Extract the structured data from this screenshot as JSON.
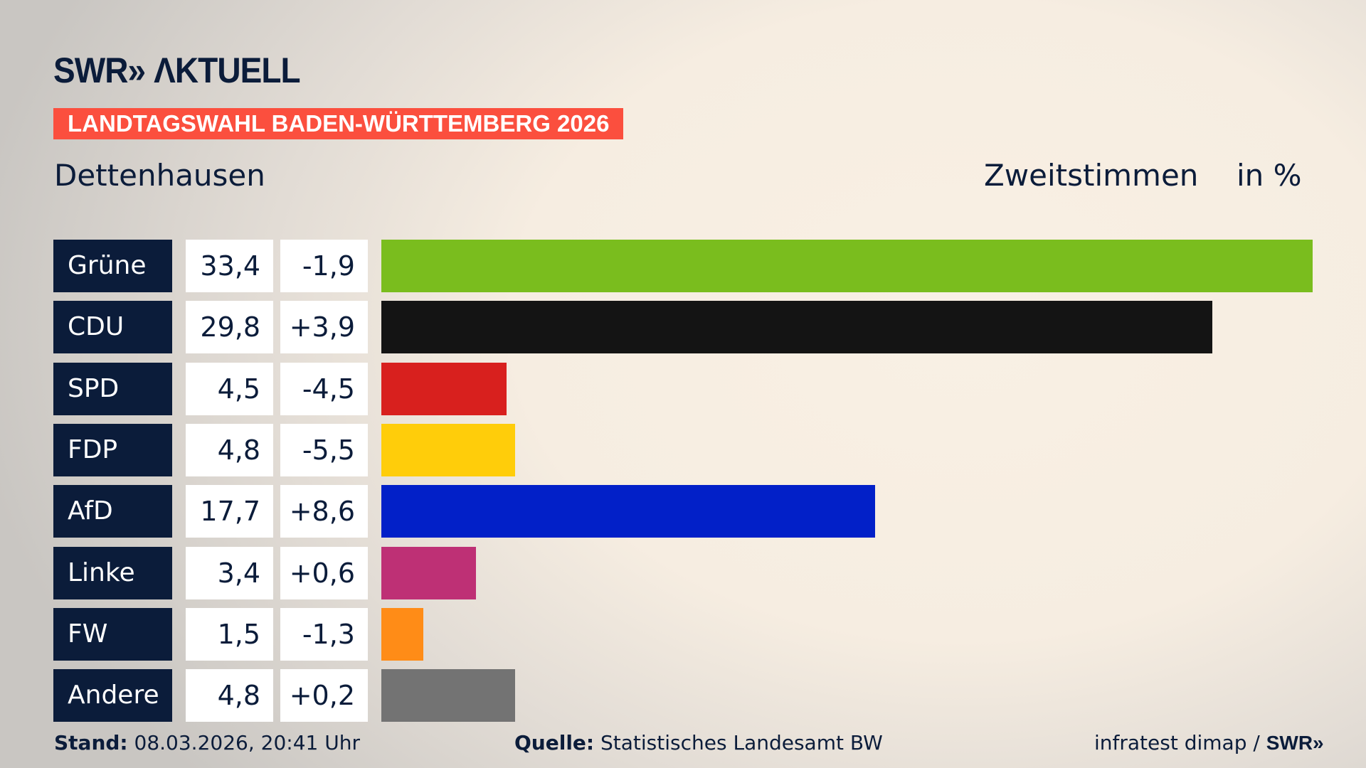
{
  "logo": "SWR» ΛKTUELL",
  "banner": "LANDTAGSWAHL BADEN-WÜRTTEMBERG 2026",
  "place": "Dettenhausen",
  "kind": "Zweitstimmen",
  "unit": "in %",
  "chart_data": {
    "type": "bar",
    "orientation": "horizontal",
    "categories": [
      "Grüne",
      "CDU",
      "SPD",
      "FDP",
      "AfD",
      "Linke",
      "FW",
      "Andere"
    ],
    "values": [
      33.4,
      29.8,
      4.5,
      4.8,
      17.7,
      3.4,
      1.5,
      4.8
    ],
    "value_labels": [
      "33,4",
      "29,8",
      "4,5",
      "4,8",
      "17,7",
      "3,4",
      "1,5",
      "4,8"
    ],
    "diff_labels": [
      "-1,9",
      "+3,9",
      "-4,5",
      "-5,5",
      "+8,6",
      "+0,6",
      "-1,3",
      "+0,2"
    ],
    "colors": [
      "#7abd1e",
      "#141414",
      "#d8201e",
      "#ffcd0a",
      "#0220c8",
      "#be3075",
      "#ff8c17",
      "#737373"
    ],
    "xlim": [
      0,
      33.4
    ]
  },
  "footer": {
    "stand_label": "Stand:",
    "stand_value": " 08.03.2026, 20:41 Uhr",
    "source_label": "Quelle:",
    "source_value": " Statistisches Landesamt BW",
    "credit": "infratest dimap / ",
    "credit_logo": "SWR»"
  }
}
